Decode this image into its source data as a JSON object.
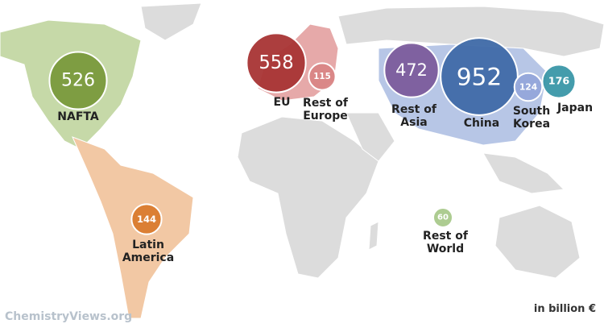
{
  "regions": [
    {
      "label": "NAFTA",
      "value": 526,
      "color": "#7a9a3c"
    },
    {
      "label": "EU",
      "value": 558,
      "color": "#a83434"
    },
    {
      "label": "Rest of Europe",
      "value": 115,
      "color": "#d98585"
    },
    {
      "label": "Rest of Asia",
      "value": 472,
      "color": "#7b5c9c"
    },
    {
      "label": "China",
      "value": 952,
      "color": "#3f6aa8"
    },
    {
      "label": "South Korea",
      "value": 124,
      "color": "#93a6da"
    },
    {
      "label": "Japan",
      "value": 176,
      "color": "#3a97a8"
    },
    {
      "label": "Latin America",
      "value": 144,
      "color": "#d97b2e"
    },
    {
      "label": "Rest of World",
      "value": 60,
      "color": "#a9c98b"
    }
  ],
  "unit": "in billion €",
  "credit": "ChemistryViews.org"
}
